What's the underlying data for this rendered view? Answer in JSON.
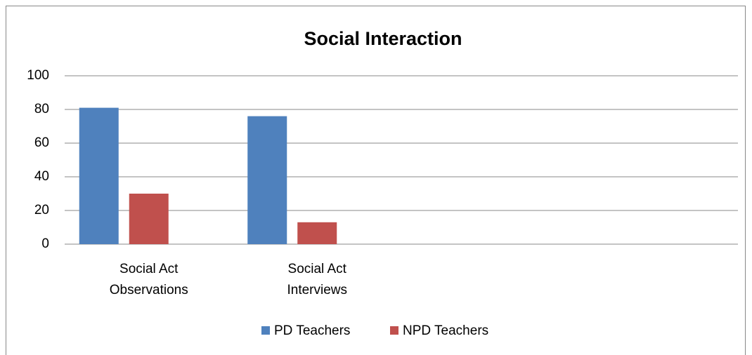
{
  "chart_data": {
    "type": "bar",
    "title": "Social Interaction",
    "categories": [
      "Social Act\nObservations",
      "Social Act\nInterviews",
      null,
      null
    ],
    "series": [
      {
        "name": "PD Teachers",
        "color": "#4f81bd",
        "values": [
          81,
          76,
          null,
          null
        ]
      },
      {
        "name": "NPD Teachers",
        "color": "#c0504d",
        "values": [
          30,
          13,
          null,
          null
        ]
      }
    ],
    "ylim": [
      0,
      100
    ],
    "yticks": [
      0,
      20,
      40,
      60,
      80,
      100
    ],
    "grid": true,
    "legend": "bottom"
  }
}
